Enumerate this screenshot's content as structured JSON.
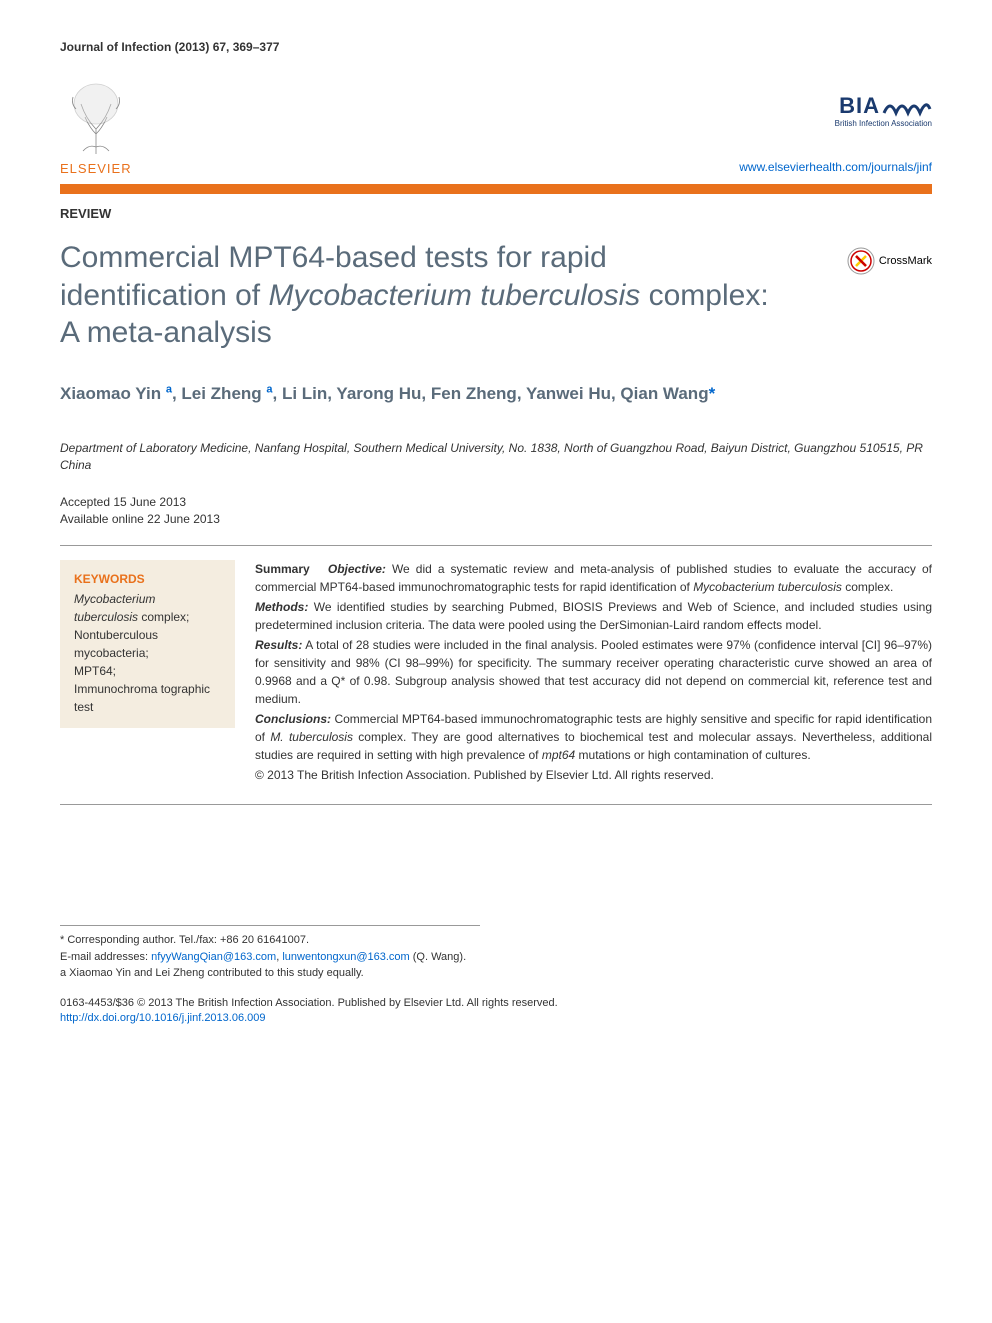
{
  "journal_citation": "Journal of Infection (2013) 67, 369–377",
  "publisher": {
    "name": "ELSEVIER",
    "logo_color": "#e9711c"
  },
  "association": {
    "acronym": "BIA",
    "wave_color": "#1a3a6e",
    "name": "British Infection Association"
  },
  "journal_url": "www.elsevierhealth.com/journals/jinf",
  "article_type": "REVIEW",
  "title_part1": "Commercial MPT64-based tests for rapid identification of ",
  "title_italic": "Mycobacterium tuberculosis",
  "title_part2": " complex: A meta-analysis",
  "crossmark_label": "CrossMark",
  "authors_line1": "Xiaomao Yin ",
  "authors_sup1": "a",
  "authors_line2": ", Lei Zheng ",
  "authors_sup2": "a",
  "authors_line3": ", Li Lin, Yarong Hu, Fen Zheng, Yanwei Hu, Qian Wang",
  "authors_corr": "*",
  "affiliation": "Department of Laboratory Medicine, Nanfang Hospital, Southern Medical University, No. 1838, North of Guangzhou Road, Baiyun District, Guangzhou 510515, PR China",
  "accepted_date": "Accepted 15 June 2013",
  "online_date": "Available online 22 June 2013",
  "keywords": {
    "heading": "KEYWORDS",
    "items_html": "<span class=\"italic\">Mycobacterium tuberculosis</span> complex;<br>Nontuberculous mycobacteria;<br>MPT64;<br>Immunochroma tographic test"
  },
  "abstract": {
    "summary_label": "Summary",
    "objective_label": "Objective:",
    "objective_text": " We did a systematic review and meta-analysis of published studies to evaluate the accuracy of commercial MPT64-based immunochromatographic tests for rapid identification of ",
    "objective_italic": "Mycobacterium tuberculosis",
    "objective_text2": " complex.",
    "methods_label": "Methods:",
    "methods_text": " We identified studies by searching Pubmed, BIOSIS Previews and Web of Science, and included studies using predetermined inclusion criteria. The data were pooled using the DerSimonian-Laird random effects model.",
    "results_label": "Results:",
    "results_text": " A total of 28 studies were included in the final analysis. Pooled estimates were 97% (confidence interval [CI] 96–97%) for sensitivity and 98% (CI 98–99%) for specificity. The summary receiver operating characteristic curve showed an area of 0.9968 and a Q* of 0.98. Subgroup analysis showed that test accuracy did not depend on commercial kit, reference test and medium.",
    "conclusions_label": "Conclusions:",
    "conclusions_text1": " Commercial MPT64-based immunochromatographic tests are highly sensitive and specific for rapid identification of ",
    "conclusions_italic1": "M. tuberculosis",
    "conclusions_text2": " complex. They are good alternatives to biochemical test and molecular assays. Nevertheless, additional studies are required in setting with high prevalence of ",
    "conclusions_italic2": "mpt64",
    "conclusions_text3": " mutations or high contamination of cultures.",
    "copyright": "© 2013 The British Infection Association. Published by Elsevier Ltd. All rights reserved."
  },
  "footnotes": {
    "corr_label": "* Corresponding author. Tel./fax: +86 20 61641007.",
    "email_label": "E-mail addresses:",
    "email1": "nfyyWangQian@163.com",
    "email2": "lunwentongxun@163.com",
    "email_name": " (Q. Wang).",
    "contrib_note": "a Xiaomao Yin and Lei Zheng contributed to this study equally."
  },
  "bottom": {
    "issn_line": "0163-4453/$36 © 2013 The British Infection Association. Published by Elsevier Ltd. All rights reserved.",
    "doi": "http://dx.doi.org/10.1016/j.jinf.2013.06.009"
  },
  "colors": {
    "accent": "#e9711c",
    "title_gray": "#5a6b7a",
    "link_blue": "#0066cc",
    "keyword_bg": "#f4ede0"
  }
}
